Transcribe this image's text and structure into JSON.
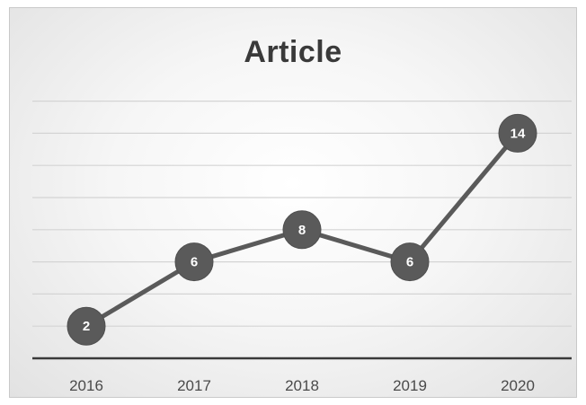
{
  "chart_data": {
    "type": "line",
    "title": "Article",
    "categories": [
      "2016",
      "2017",
      "2018",
      "2019",
      "2020"
    ],
    "series": [
      {
        "values": [
          2,
          6,
          8,
          6,
          14
        ]
      }
    ],
    "data_labels": [
      "2",
      "6",
      "8",
      "6",
      "14"
    ],
    "ylim": [
      0,
      16
    ],
    "y_gridline_step": 2,
    "grid": true,
    "legend": "none",
    "colors": {
      "line": "#5a5a5a",
      "marker": "#5a5a5a",
      "gridline": "#d4d4d4",
      "axis": "#3a3a3a"
    }
  }
}
